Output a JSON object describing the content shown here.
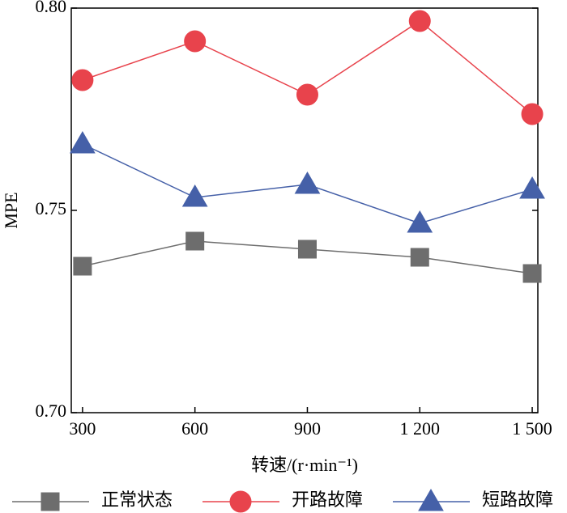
{
  "chart_data": {
    "type": "line",
    "x": [
      300,
      600,
      900,
      1200,
      1500
    ],
    "xlabel": "转速/(r·min⁻¹)",
    "ylabel": "MPE",
    "xlim": [
      270,
      1515
    ],
    "xticks": [
      300,
      600,
      900,
      {
        "value": 1200,
        "label": "1 200"
      },
      {
        "value": 1500,
        "label": "1 500"
      }
    ],
    "ylim": [
      0.7,
      0.8
    ],
    "yticks": [
      {
        "value": 0.7,
        "label": "0.70"
      },
      {
        "value": 0.75,
        "label": "0.75"
      },
      {
        "value": 0.8,
        "label": "0.80"
      }
    ],
    "legend": "bottom",
    "series": [
      {
        "name": "正常状态",
        "color": "#6d6d6d",
        "marker": "square",
        "values": [
          0.7362,
          0.7424,
          0.7404,
          0.7384,
          0.7344
        ]
      },
      {
        "name": "开路故障",
        "color": "#e8434c",
        "marker": "circle",
        "values": [
          0.7822,
          0.7918,
          0.7786,
          0.7968,
          0.7738
        ]
      },
      {
        "name": "短路故障",
        "color": "#4560a8",
        "marker": "triangle",
        "values": [
          0.7664,
          0.7532,
          0.7564,
          0.7468,
          0.7552
        ]
      }
    ]
  }
}
